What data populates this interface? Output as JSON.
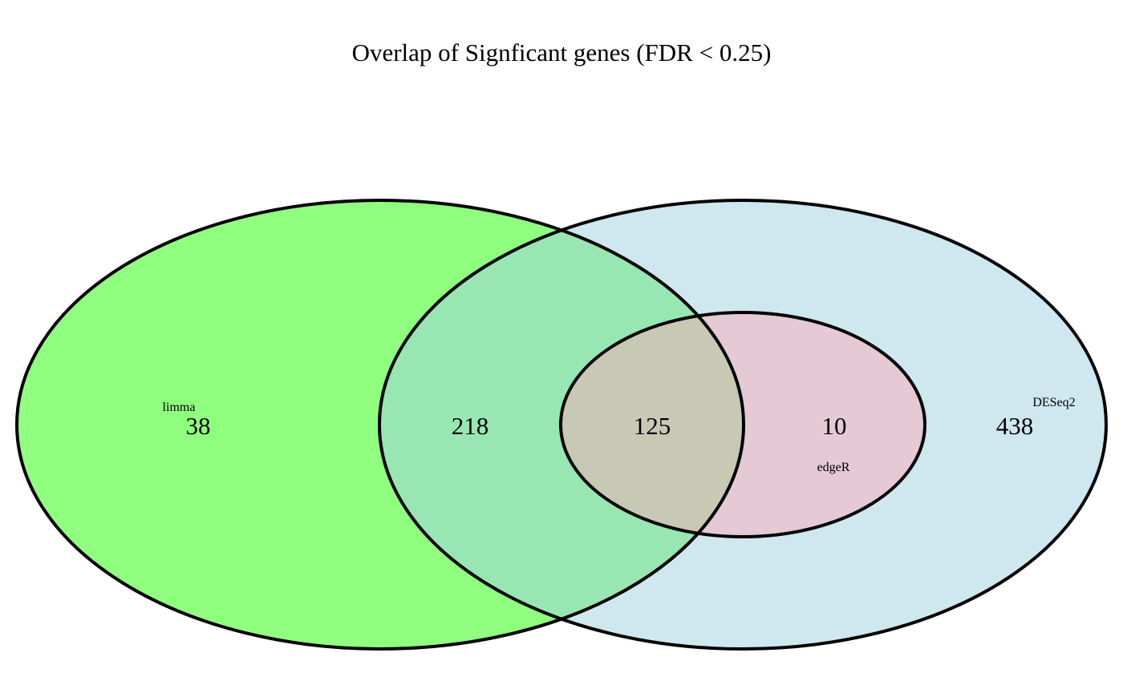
{
  "title": "Overlap of Signficant genes (FDR < 0.25)",
  "sets": [
    {
      "name": "limma",
      "color": "#90ff80"
    },
    {
      "name": "DESeq2",
      "color": "#cfe7ef"
    },
    {
      "name": "edgeR",
      "color": "#e5c9d5"
    }
  ],
  "regions": {
    "limma_only": "38",
    "limma_deseq2": "218",
    "limma_deseq2_edger": "125",
    "deseq2_edger": "10",
    "deseq2_only": "438"
  },
  "colors": {
    "limma_deseq2_overlap": "#98e7b3",
    "all_three_overlap": "#c8c9b5",
    "outline": "#000000"
  }
}
